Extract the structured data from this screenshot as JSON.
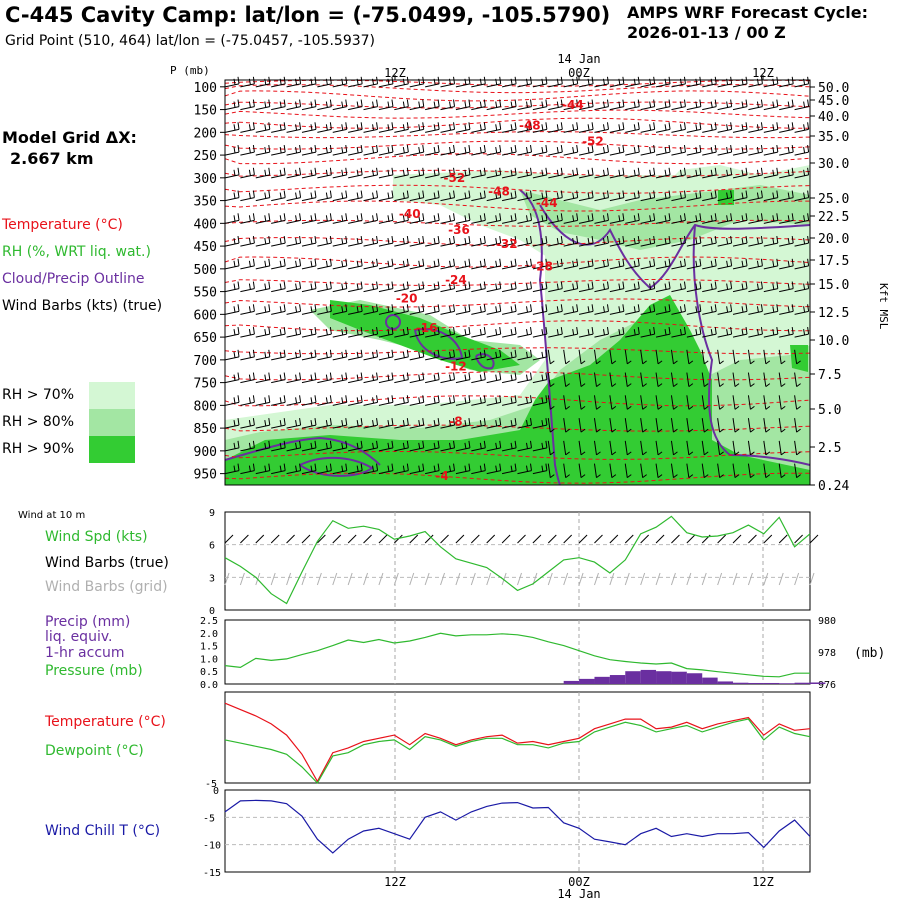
{
  "header": {
    "title": "C-445 Cavity Camp:  lat/lon = (-75.0499, -105.5790)",
    "subtitle": "Grid Point (510, 464) lat/lon = (-75.0457, -105.5937)",
    "cycle_label": "AMPS WRF Forecast Cycle:",
    "cycle_value": "2026-01-13 / 00  Z",
    "grid_label": "Model Grid ΔX:",
    "grid_value": "2.667 km"
  },
  "legend": {
    "temperature": "Temperature (°C)",
    "rh": "RH (%, WRT liq. wat.)",
    "cloud": "Cloud/Precip Outline",
    "wind": "Wind Barbs (kts) (true)",
    "rh70": "RH > 70%",
    "rh80": "RH > 80%",
    "rh90": "RH > 90%",
    "wind10m": "Wind at 10 m",
    "wind_spd": "Wind Spd (kts)",
    "barbs_true": "Wind Barbs (true)",
    "barbs_grid": "Wind Barbs (grid)",
    "precip1": "Precip (mm)",
    "precip2": "liq. equiv.",
    "precip3": "1-hr accum",
    "pressure": "Pressure (mb)",
    "temp2": "Temperature (°C)",
    "dewpoint": "Dewpoint (°C)",
    "windchill": "Wind Chill T (°C)"
  },
  "colors": {
    "temperature": "#e8121a",
    "rh": "#2fb92f",
    "cloud": "#6a2fa0",
    "rh70": "#d4f7d4",
    "rh80": "#a3e6a3",
    "rh90": "#33cc33",
    "windchill": "#1a1aa6",
    "barbs_grid": "#b0b0b0"
  },
  "axes": {
    "pressure_label": "P (mb)",
    "pressure_ticks": [
      "100",
      "150",
      "200",
      "250",
      "300",
      "350",
      "400",
      "450",
      "500",
      "550",
      "600",
      "650",
      "700",
      "750",
      "800",
      "850",
      "900",
      "950"
    ],
    "height_ticks": [
      "50.0",
      "45.0",
      "40.0",
      "35.0",
      "30.0",
      "25.0",
      "22.5",
      "20.0",
      "17.5",
      "15.0",
      "12.5",
      "10.0",
      "7.5",
      "5.0",
      "2.5",
      "0.24"
    ],
    "height_label": "Kft MSL",
    "time_ticks": [
      "12Z",
      "00Z",
      "12Z"
    ],
    "date_label": "14 Jan"
  },
  "chart_data": [
    {
      "type": "heatmap",
      "name": "vertical cross-section",
      "x": "forecast hours",
      "xlim": [
        0,
        38
      ],
      "ylim": [
        975,
        85
      ],
      "temperature_labels": [
        {
          "x": 22.6,
          "p": 140,
          "value": "-44"
        },
        {
          "x": 19.8,
          "p": 185,
          "value": "-48"
        },
        {
          "x": 23.9,
          "p": 220,
          "value": "-52"
        },
        {
          "x": 14.9,
          "p": 300,
          "value": "-52"
        },
        {
          "x": 17.8,
          "p": 330,
          "value": "-48"
        },
        {
          "x": 20.9,
          "p": 355,
          "value": "-44"
        },
        {
          "x": 12.0,
          "p": 380,
          "value": "-40"
        },
        {
          "x": 15.2,
          "p": 415,
          "value": "-36"
        },
        {
          "x": 18.3,
          "p": 445,
          "value": "-32"
        },
        {
          "x": 20.6,
          "p": 495,
          "value": "-28"
        },
        {
          "x": 15.0,
          "p": 525,
          "value": "-24"
        },
        {
          "x": 11.8,
          "p": 565,
          "value": "-20"
        },
        {
          "x": 13.1,
          "p": 630,
          "value": "-16"
        },
        {
          "x": 15.0,
          "p": 715,
          "value": "-12"
        },
        {
          "x": 15.0,
          "p": 835,
          "value": "-8"
        },
        {
          "x": 14.1,
          "p": 955,
          "value": "-4"
        }
      ]
    },
    {
      "type": "line",
      "name": "wind at 10 m",
      "ylim": [
        0,
        9
      ],
      "yticks": [
        "9",
        "6",
        "3",
        "0"
      ],
      "x": [
        0,
        1,
        2,
        3,
        4,
        5,
        6,
        7,
        8,
        9,
        10,
        11,
        12,
        13,
        14,
        15,
        16,
        17,
        18,
        19,
        20,
        21,
        22,
        23,
        24,
        25,
        26,
        27,
        28,
        29,
        30,
        31,
        32,
        33,
        34,
        35,
        36,
        37,
        38
      ],
      "series": [
        {
          "values": [
            4.8,
            4.0,
            3.0,
            1.5,
            0.6,
            3.5,
            6.3,
            8.2,
            7.5,
            7.7,
            7.4,
            6.5,
            6.8,
            7.2,
            5.8,
            4.7,
            4.3,
            3.9,
            2.9,
            1.8,
            2.4,
            3.5,
            4.6,
            4.8,
            4.4,
            3.4,
            4.6,
            7.0,
            7.6,
            8.6,
            7.1,
            6.7,
            6.8,
            7.1,
            7.8,
            7.0,
            8.5,
            5.8,
            7.0
          ]
        }
      ]
    },
    {
      "type": "line",
      "name": "precip and pressure",
      "ylim": [
        0,
        2.5
      ],
      "yticks": [
        "2.5",
        "2.0",
        "1.5",
        "1.0",
        "0.5",
        "0.0"
      ],
      "y2ticks": [
        "980",
        "978",
        "976"
      ],
      "y2label": "(mb)",
      "x": [
        0,
        1,
        2,
        3,
        4,
        5,
        6,
        7,
        8,
        9,
        10,
        11,
        12,
        13,
        14,
        15,
        16,
        17,
        18,
        19,
        20,
        21,
        22,
        23,
        24,
        25,
        26,
        27,
        28,
        29,
        30,
        31,
        32,
        33,
        34,
        35,
        36,
        37,
        38
      ],
      "series": [
        {
          "values": [
            0.72,
            0.65,
            1.0,
            0.92,
            0.98,
            1.15,
            1.3,
            1.5,
            1.72,
            1.62,
            1.74,
            1.6,
            1.68,
            1.82,
            1.98,
            1.88,
            1.92,
            1.92,
            1.96,
            1.92,
            1.82,
            1.65,
            1.5,
            1.3,
            1.1,
            0.95,
            0.88,
            0.82,
            0.78,
            0.82,
            0.6,
            0.55,
            0.48,
            0.42,
            0.36,
            0.3,
            0.28,
            0.42,
            0.42
          ]
        },
        {
          "values": [
            0,
            0,
            0,
            0,
            0,
            0,
            0,
            0,
            0,
            0,
            0,
            0,
            0,
            0,
            0,
            0,
            0,
            0,
            0,
            0,
            0,
            0,
            0.12,
            0.2,
            0.28,
            0.35,
            0.5,
            0.55,
            0.5,
            0.48,
            0.42,
            0.25,
            0.1,
            0.05,
            0.04,
            0.04,
            0.03,
            0.05,
            0.06
          ]
        }
      ]
    },
    {
      "type": "line",
      "name": "temperature and dewpoint",
      "yticks": [
        "-5"
      ],
      "x": [
        0,
        1,
        2,
        3,
        4,
        5,
        6,
        7,
        8,
        9,
        10,
        11,
        12,
        13,
        14,
        15,
        16,
        17,
        18,
        19,
        20,
        21,
        22,
        23,
        24,
        25,
        26,
        27,
        28,
        29,
        30,
        31,
        32,
        33,
        34,
        35,
        36,
        37,
        38
      ],
      "series": [
        {
          "values": [
            -0.2,
            -0.6,
            -1.0,
            -1.5,
            -2.2,
            -3.4,
            -5.1,
            -3.3,
            -3.0,
            -2.6,
            -2.4,
            -2.2,
            -2.8,
            -2.1,
            -2.4,
            -2.8,
            -2.5,
            -2.3,
            -2.2,
            -2.7,
            -2.6,
            -2.8,
            -2.6,
            -2.4,
            -1.8,
            -1.5,
            -1.2,
            -1.2,
            -1.8,
            -1.7,
            -1.4,
            -1.8,
            -1.5,
            -1.3,
            -1.1,
            -2.2,
            -1.5,
            -1.9,
            -1.8
          ]
        },
        {
          "values": [
            -2.5,
            -2.7,
            -2.9,
            -3.1,
            -3.4,
            -4.2,
            -5.2,
            -3.5,
            -3.3,
            -2.8,
            -2.6,
            -2.5,
            -3.1,
            -2.3,
            -2.5,
            -2.9,
            -2.6,
            -2.4,
            -2.4,
            -2.8,
            -2.8,
            -3.0,
            -2.7,
            -2.6,
            -2.0,
            -1.7,
            -1.4,
            -1.6,
            -2.0,
            -1.8,
            -1.6,
            -2.0,
            -1.7,
            -1.4,
            -1.2,
            -2.5,
            -1.7,
            -2.1,
            -2.3
          ]
        }
      ]
    },
    {
      "type": "line",
      "name": "wind chill",
      "ylim": [
        -15,
        0
      ],
      "yticks": [
        "0",
        "-5",
        "-10",
        "-15"
      ],
      "x": [
        0,
        1,
        2,
        3,
        4,
        5,
        6,
        7,
        8,
        9,
        10,
        11,
        12,
        13,
        14,
        15,
        16,
        17,
        18,
        19,
        20,
        21,
        22,
        23,
        24,
        25,
        26,
        27,
        28,
        29,
        30,
        31,
        32,
        33,
        34,
        35,
        36,
        37,
        38
      ],
      "series": [
        {
          "values": [
            -4.0,
            -2.0,
            -1.9,
            -2.0,
            -2.5,
            -4.8,
            -9.0,
            -11.5,
            -9.0,
            -7.5,
            -7.0,
            -8.0,
            -9.0,
            -5.0,
            -4.0,
            -5.5,
            -4.0,
            -3.0,
            -2.4,
            -2.3,
            -3.3,
            -3.2,
            -6.0,
            -7.0,
            -9.0,
            -9.5,
            -10.0,
            -8.0,
            -7.0,
            -8.5,
            -8.0,
            -8.5,
            -8.0,
            -8.0,
            -7.8,
            -10.5,
            -7.5,
            -5.5,
            -8.5
          ]
        }
      ]
    }
  ]
}
